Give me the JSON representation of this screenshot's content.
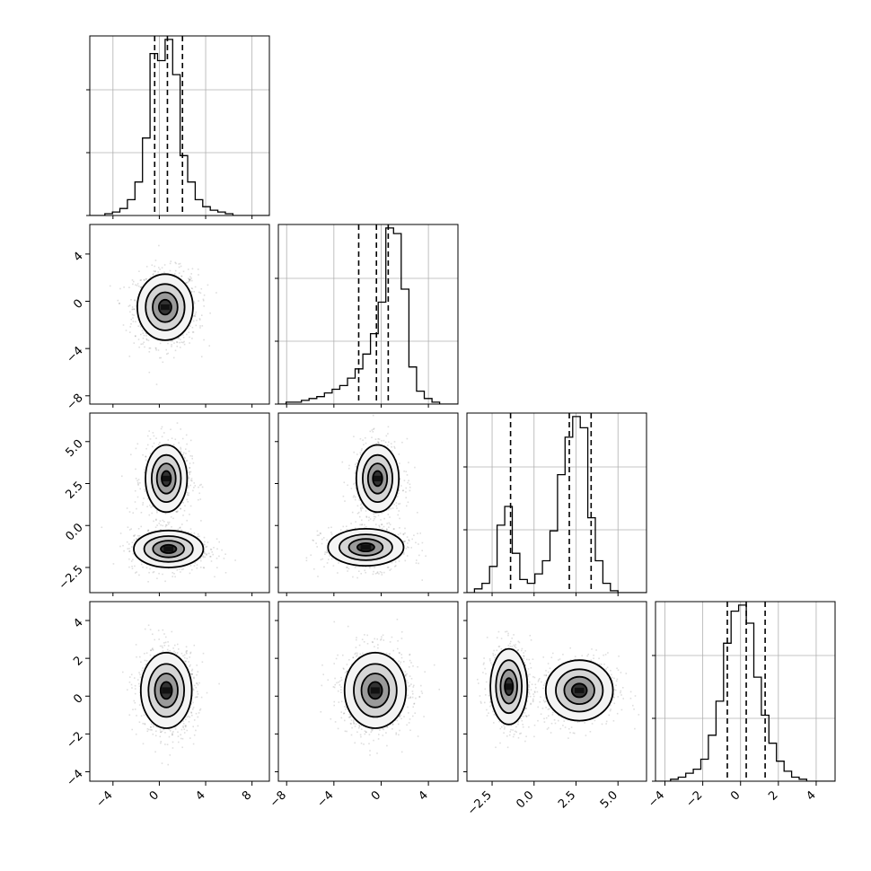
{
  "chart_data": {
    "type": "corner",
    "variables": 4,
    "variable_names": [],
    "quantiles_marked": [
      0.16,
      0.5,
      0.84
    ],
    "grid": true,
    "ranges": [
      [
        -6,
        9.5
      ],
      [
        -8.7,
        6.5
      ],
      [
        -4,
        6.7
      ],
      [
        -4.5,
        5
      ]
    ],
    "ticks": [
      [
        "−4",
        "0",
        "4",
        "8"
      ],
      [
        "−8",
        "−4",
        "0",
        "4"
      ],
      [
        "−2.5",
        "0.0",
        "2.5",
        "5.0"
      ],
      [
        "−4",
        "−2",
        "0",
        "2",
        "4"
      ]
    ],
    "tick_values": [
      [
        -4,
        0,
        4,
        8
      ],
      [
        -8,
        -4,
        0,
        4
      ],
      [
        -2.5,
        0,
        2.5,
        5
      ],
      [
        -4,
        -2,
        0,
        2,
        4
      ]
    ],
    "quantile_values": [
      [
        -0.4,
        0.7,
        2.0
      ],
      [
        -1.9,
        -0.4,
        0.6
      ],
      [
        -1.4,
        2.1,
        3.4
      ],
      [
        -0.7,
        0.3,
        1.3
      ]
    ],
    "histograms": [
      {
        "edges_start": -6,
        "bin_width": 0.65,
        "counts": [
          0,
          0,
          1,
          2,
          4,
          9,
          19,
          44,
          92,
          88,
          100,
          80,
          34,
          19,
          9,
          5,
          3,
          2,
          1,
          0,
          0,
          0,
          0,
          0
        ]
      },
      {
        "edges_start": -8.7,
        "bin_width": 0.65,
        "counts": [
          0,
          1,
          1,
          2,
          3,
          4,
          6,
          8,
          10,
          14,
          19,
          27,
          38,
          55,
          95,
          92,
          62,
          20,
          7,
          3,
          1,
          0,
          0,
          0
        ]
      },
      {
        "edges_start": -4,
        "bin_width": 0.45,
        "counts": [
          0,
          2,
          5,
          14,
          36,
          46,
          21,
          7,
          5,
          10,
          17,
          33,
          63,
          83,
          94,
          88,
          40,
          17,
          5,
          1,
          0,
          0,
          0,
          0
        ]
      },
      {
        "edges_start": -4.5,
        "bin_width": 0.4,
        "counts": [
          0,
          0,
          1,
          2,
          4,
          6,
          11,
          23,
          40,
          69,
          85,
          88,
          79,
          52,
          33,
          19,
          10,
          5,
          2,
          1,
          0,
          0,
          0,
          0
        ]
      }
    ],
    "pair_modes": [
      {
        "row": 1,
        "col": 0,
        "means": [
          [
            0.5,
            -0.5
          ]
        ],
        "sd": [
          [
            1.2,
            1.4
          ]
        ]
      },
      {
        "row": 2,
        "col": 0,
        "means": [
          [
            0.6,
            2.8
          ],
          [
            0.8,
            -1.4
          ]
        ],
        "sd": [
          [
            0.9,
            1.0
          ],
          [
            1.5,
            0.55
          ]
        ]
      },
      {
        "row": 2,
        "col": 1,
        "means": [
          [
            -0.3,
            2.8
          ],
          [
            -1.3,
            -1.3
          ]
        ],
        "sd": [
          [
            0.9,
            1.0
          ],
          [
            1.6,
            0.55
          ]
        ]
      },
      {
        "row": 3,
        "col": 0,
        "means": [
          [
            0.6,
            0.3
          ]
        ],
        "sd": [
          [
            1.1,
            1.0
          ]
        ]
      },
      {
        "row": 3,
        "col": 1,
        "means": [
          [
            -0.5,
            0.3
          ]
        ],
        "sd": [
          [
            1.3,
            1.0
          ]
        ]
      },
      {
        "row": 3,
        "col": 2,
        "means": [
          [
            -1.5,
            0.5
          ],
          [
            2.7,
            0.3
          ]
        ],
        "sd": [
          [
            0.55,
            1.0
          ],
          [
            1.0,
            0.8
          ]
        ]
      }
    ]
  }
}
